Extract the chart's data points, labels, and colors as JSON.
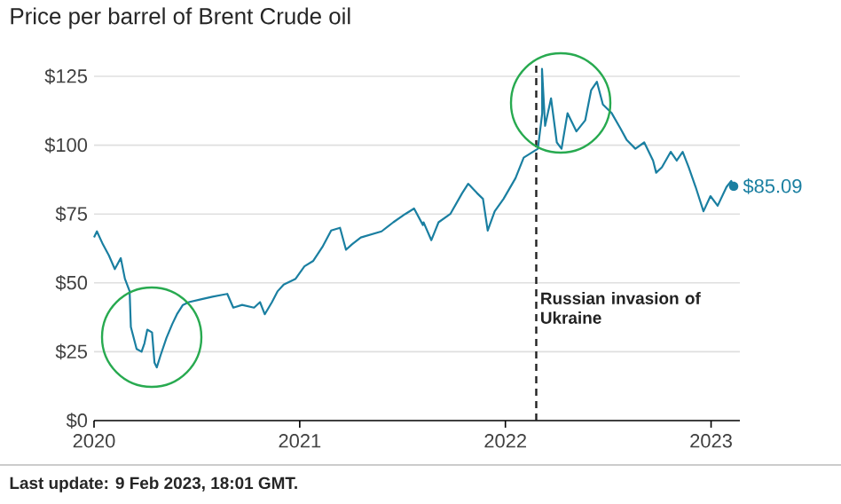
{
  "chart_data": {
    "type": "line",
    "title": "Price per barrel of Brent Crude oil",
    "x": [
      2020.0,
      2020.014,
      2020.043,
      2020.072,
      2020.101,
      2020.13,
      2020.15,
      2020.173,
      2020.179,
      2020.207,
      2020.231,
      2020.245,
      2020.259,
      2020.282,
      2020.294,
      2020.305,
      2020.323,
      2020.352,
      2020.38,
      2020.403,
      2020.432,
      2020.461,
      2020.519,
      2020.576,
      2020.648,
      2020.677,
      2020.72,
      2020.778,
      2020.807,
      2020.83,
      2020.865,
      2020.893,
      2020.922,
      2020.98,
      2021.023,
      2021.066,
      2021.11,
      2021.153,
      2021.196,
      2021.225,
      2021.254,
      2021.254,
      2021.297,
      2021.297,
      2021.398,
      2021.455,
      2021.513,
      2021.556,
      2021.599,
      2021.602,
      2021.64,
      2021.675,
      2021.732,
      2021.79,
      2021.819,
      2021.862,
      2021.891,
      2021.914,
      2021.948,
      2021.991,
      2022.049,
      2022.089,
      2022.158,
      2022.179,
      2022.178,
      2022.193,
      2022.222,
      2022.25,
      2022.273,
      2022.302,
      2022.345,
      2022.388,
      2022.417,
      2022.445,
      2022.474,
      2022.517,
      2022.56,
      2022.589,
      2022.632,
      2022.675,
      2022.718,
      2022.733,
      2022.761,
      2022.804,
      2022.833,
      2022.862,
      2022.891,
      2022.925,
      2022.963,
      2022.997,
      2023.032,
      2023.075,
      2023.098,
      2023.11
    ],
    "series": [
      {
        "color": "#1a7fa1",
        "values": [
          66.5,
          68.7,
          64,
          60,
          55,
          59,
          51.5,
          47,
          34,
          26,
          25,
          28,
          33,
          32,
          21,
          19.3,
          23.6,
          30,
          35,
          38.6,
          42,
          43,
          44,
          45,
          46,
          41,
          42,
          41,
          43,
          38.6,
          43,
          47,
          49.4,
          51.5,
          56,
          58,
          63,
          69,
          70,
          62,
          64,
          64,
          66.5,
          66.5,
          68.7,
          72,
          75,
          77,
          71,
          72,
          65.5,
          72,
          75,
          82.6,
          86,
          82.6,
          80.5,
          69,
          76,
          80.5,
          88,
          95.5,
          98.7,
          111.6,
          127.7,
          107,
          117,
          101,
          98.7,
          111.6,
          105,
          109,
          120,
          123,
          114.8,
          111.6,
          106,
          102,
          98.7,
          101,
          94.4,
          90,
          92,
          97.6,
          94.4,
          97.6,
          92,
          84.8,
          76,
          81.5,
          78,
          84.8,
          87,
          85.09
        ]
      }
    ],
    "xlim": [
      2020,
      2023.14
    ],
    "xticks": [
      2020,
      2021,
      2022,
      2023
    ],
    "ylim": [
      0,
      130
    ],
    "yticks": [
      {
        "value": 0,
        "label": "$0"
      },
      {
        "value": 25,
        "label": "$25"
      },
      {
        "value": 50,
        "label": "$50"
      },
      {
        "value": 75,
        "label": "$75"
      },
      {
        "value": 100,
        "label": "$100"
      },
      {
        "value": 125,
        "label": "$125"
      }
    ],
    "grid": "y",
    "marker": "none",
    "line_style": "solid",
    "ref_lines": [
      {
        "axis": "x",
        "value": 2022.15,
        "label": "Russian invasion of Ukraine",
        "color": "#222222",
        "line_style": "dashed"
      }
    ],
    "annotations": [
      {
        "text": "$85.09",
        "x": 2023.11,
        "y": 85.09
      },
      "Last update: 9 Feb 2023, 18:01 GMT."
    ]
  }
}
